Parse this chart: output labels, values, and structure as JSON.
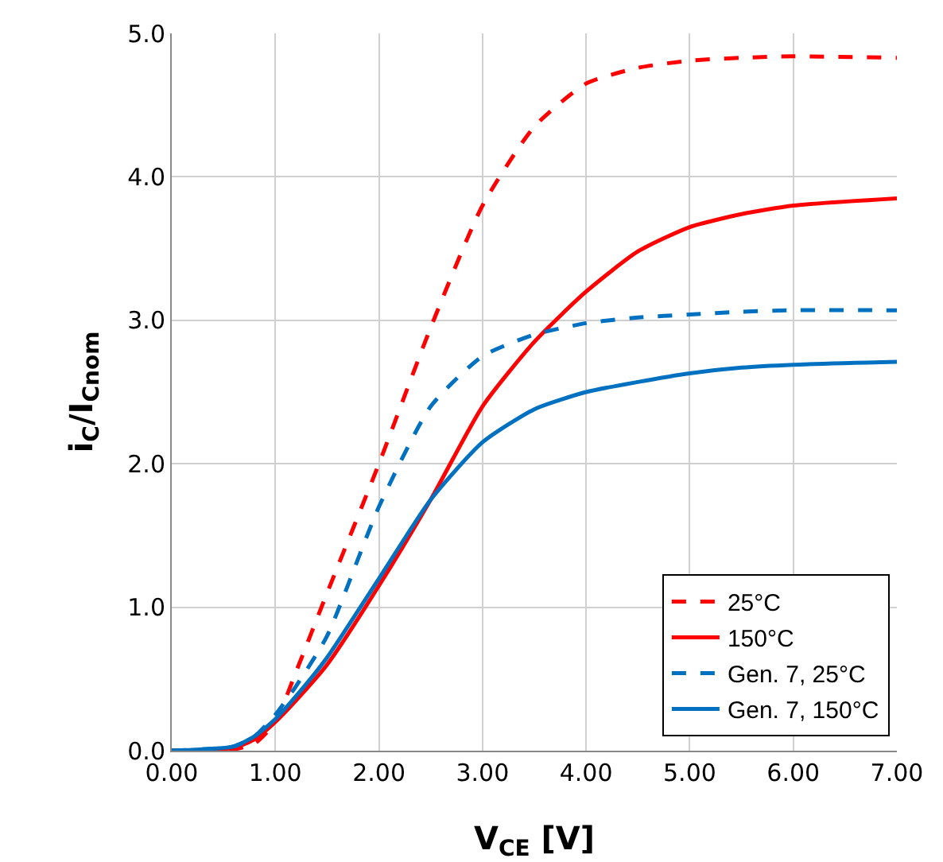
{
  "chart_data": {
    "type": "line",
    "xlabel": "V$_{CE}$ [V]",
    "ylabel": "i$_{C}$/I$_{Cnom}$",
    "xlim": [
      0,
      7
    ],
    "ylim": [
      0,
      5
    ],
    "xticks": [
      {
        "value": 0,
        "label": "0.00"
      },
      {
        "value": 1,
        "label": "1.00"
      },
      {
        "value": 2,
        "label": "2.00"
      },
      {
        "value": 3,
        "label": "3.00"
      },
      {
        "value": 4,
        "label": "4.00"
      },
      {
        "value": 5,
        "label": "5.00"
      },
      {
        "value": 6,
        "label": "6.00"
      },
      {
        "value": 7,
        "label": "7.00"
      }
    ],
    "yticks": [
      {
        "value": 0,
        "label": "0.0"
      },
      {
        "value": 1,
        "label": "1.0"
      },
      {
        "value": 2,
        "label": "2.0"
      },
      {
        "value": 3,
        "label": "3.0"
      },
      {
        "value": 4,
        "label": "4.0"
      },
      {
        "value": 5,
        "label": "5.0"
      }
    ],
    "grid": true,
    "legend": "bottom right",
    "marker": "none",
    "x": [
      0,
      0.6,
      0.8,
      1.0,
      1.2,
      1.5,
      2.0,
      2.5,
      3.0,
      3.5,
      4.0,
      4.5,
      5.0,
      5.5,
      6.0,
      7.0
    ],
    "series": [
      {
        "name": "25°C",
        "color": "#ff0000",
        "line_style": "dashed",
        "values": [
          0,
          0.01,
          0.05,
          0.2,
          0.55,
          1.1,
          2.0,
          2.95,
          3.8,
          4.35,
          4.65,
          4.76,
          4.81,
          4.83,
          4.84,
          4.83
        ]
      },
      {
        "name": "150°C",
        "color": "#ff0000",
        "line_style": "solid",
        "values": [
          0,
          0.02,
          0.08,
          0.2,
          0.35,
          0.6,
          1.15,
          1.75,
          2.4,
          2.85,
          3.2,
          3.48,
          3.65,
          3.74,
          3.8,
          3.85
        ]
      },
      {
        "name": "Gen. 7, 25°C",
        "color": "#0070c0",
        "line_style": "dashed",
        "values": [
          0,
          0.03,
          0.1,
          0.25,
          0.45,
          0.8,
          1.7,
          2.4,
          2.75,
          2.9,
          2.98,
          3.02,
          3.04,
          3.06,
          3.07,
          3.07
        ]
      },
      {
        "name": "Gen. 7, 150°C",
        "color": "#0070c0",
        "line_style": "solid",
        "values": [
          0,
          0.03,
          0.1,
          0.22,
          0.38,
          0.65,
          1.2,
          1.75,
          2.15,
          2.38,
          2.5,
          2.57,
          2.63,
          2.67,
          2.69,
          2.71
        ]
      }
    ]
  }
}
